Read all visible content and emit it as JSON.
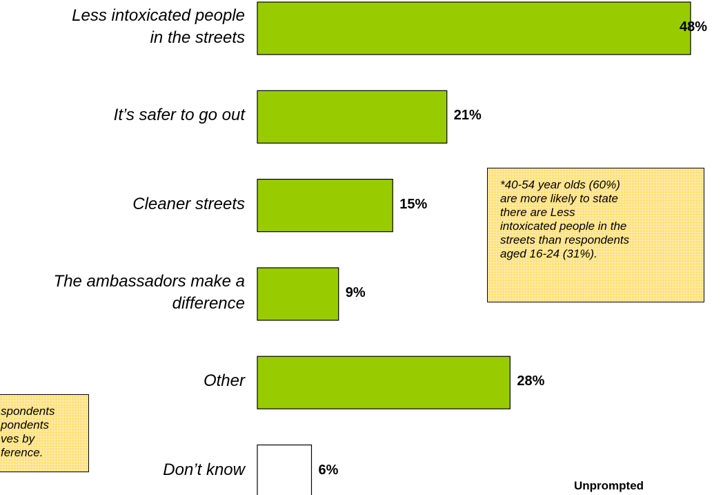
{
  "chart_data": {
    "type": "bar",
    "orientation": "horizontal",
    "categories": [
      "Less intoxicated people\nin the streets",
      "It’s safer to go out",
      "Cleaner streets",
      "The ambassadors make a\ndifference",
      "Other",
      "Don’t know"
    ],
    "values": [
      48,
      21,
      15,
      9,
      28,
      6
    ],
    "value_labels": [
      "48%",
      "21%",
      "15%",
      "9%",
      "28%",
      "6%"
    ],
    "colors": [
      "#99cc00",
      "#99cc00",
      "#99cc00",
      "#99cc00",
      "#99cc00",
      "#ffffff"
    ],
    "xlim": [
      0,
      48
    ],
    "annotations": [
      "*40-54 year olds (60%)\nare more likely to state\nthere are Less\nintoxicated people in the\nstreets than respondents\naged 16-24 (31%).",
      "spondents\npondents\nves by\nference.",
      "Unprompted"
    ]
  }
}
